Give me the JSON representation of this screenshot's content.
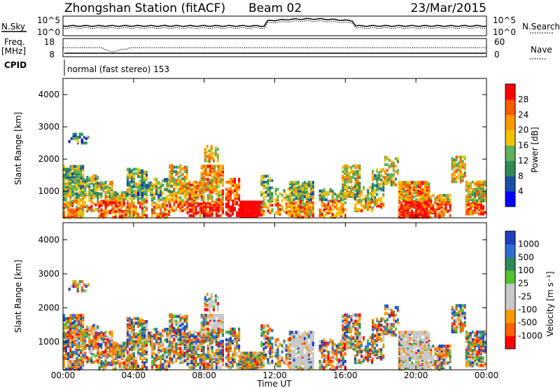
{
  "header": {
    "station": "Zhongshan Station (fitACF)",
    "beam": "Beam 02",
    "date": "23/Mar/2015"
  },
  "panels": {
    "nsky_label": "N.Sky",
    "nsearch_label": "N.Search",
    "nsky_ticks": [
      "10^5",
      "10^0"
    ],
    "nsearch_ticks": [
      "10^5",
      "10^0"
    ],
    "freq_label_1": "Freq.",
    "freq_label_2": "[MHz]",
    "freq_ticks": [
      "18",
      "8"
    ],
    "nave_label": "Nave",
    "nave_ticks": [
      "60",
      "0"
    ],
    "cpid_label": "CPID",
    "cpid_text": "normal (fast stereo) 153"
  },
  "colors": {
    "power_scale": [
      "#0000ff",
      "#1a4fa8",
      "#2e8b57",
      "#5cb25a",
      "#f2c200",
      "#ff9900",
      "#ff5a00",
      "#ff0000"
    ],
    "velocity_scale": [
      "#1f3fbf",
      "#2f6fd2",
      "#2e8b57",
      "#4fc22f",
      "#c8c8c8",
      "#c8c8c8",
      "#ff9900",
      "#ff6000",
      "#ff0000"
    ],
    "ground_scatter": "#c8c8c8"
  },
  "chart_data": [
    {
      "type": "heatmap",
      "name": "power",
      "ylabel": "Slant Range [km]",
      "ylim": [
        180,
        4500
      ],
      "yticks": [
        "1000",
        "2000",
        "3000",
        "4000"
      ],
      "xlim": [
        0,
        24
      ],
      "xticks": [
        "00:00",
        "04:00",
        "08:00",
        "12:00",
        "16:00",
        "20:00",
        "00:00"
      ],
      "colorbar": {
        "label": "Power [dB]",
        "ticks": [
          "4",
          "8",
          "12",
          "16",
          "20",
          "24",
          "28"
        ]
      }
    },
    {
      "type": "heatmap",
      "name": "velocity",
      "ylabel": "Slant Range [km]",
      "ylim": [
        180,
        4500
      ],
      "yticks": [
        "1000",
        "2000",
        "3000",
        "4000"
      ],
      "xlim": [
        0,
        24
      ],
      "xticks": [
        "00:00",
        "04:00",
        "08:00",
        "12:00",
        "16:00",
        "20:00",
        "00:00"
      ],
      "xlabel": "Time UT",
      "colorbar": {
        "label": "Velocity [m s⁻¹]",
        "ticks": [
          "1000",
          "500",
          "100",
          "25",
          "-25",
          "-100",
          "-500",
          "-1000"
        ]
      }
    }
  ]
}
